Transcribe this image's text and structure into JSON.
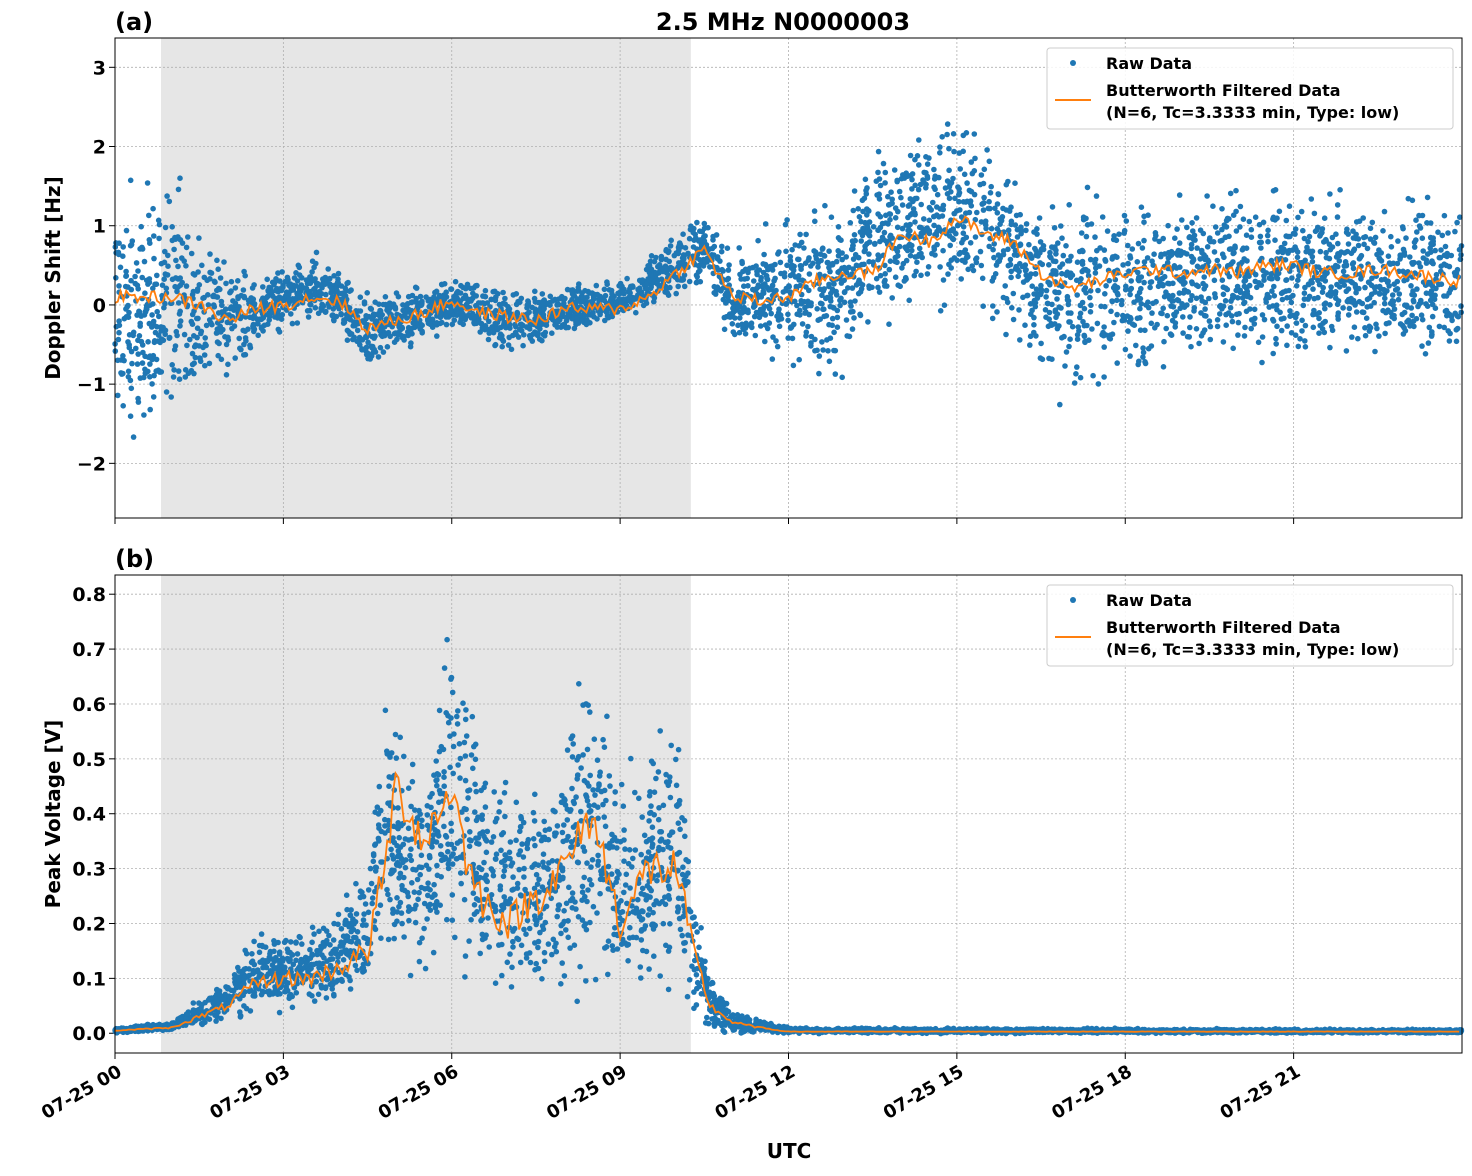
{
  "title": "2.5 MHz N0000003",
  "xlabel": "UTC",
  "colors": {
    "raw": "#1f77b4",
    "filtered": "#ff7f0e",
    "shade": "#e6e6e6"
  },
  "chart_data": [
    {
      "type": "scatter",
      "panel_label": "(a)",
      "ylabel": "Doppler Shift [Hz]",
      "xlim_hours": [
        0,
        24
      ],
      "ylim": [
        -2.69,
        3.37
      ],
      "yticks": [
        -2,
        -1,
        0,
        1,
        2,
        3
      ],
      "yticklabels": [
        "−2",
        "−1",
        "0",
        "1",
        "2",
        "3"
      ],
      "xticklabels": [
        "07-25 00",
        "07-25 03",
        "07-25 06",
        "07-25 09",
        "07-25 12",
        "07-25 15",
        "07-25 18",
        "07-25 21"
      ],
      "xticks_hours": [
        0,
        3,
        6,
        9,
        12,
        15,
        18,
        21
      ],
      "grid": true,
      "legend_placement": "upper-right",
      "legend": [
        "Raw Data",
        "Butterworth Filtered Data",
        "(N=6, Tc=3.3333 min, Type: low)"
      ],
      "shaded_hours": [
        0.82,
        10.26
      ],
      "raw_envelope": [
        [
          0,
          -1.5,
          1.3
        ],
        [
          1,
          -1.6,
          1.6
        ],
        [
          2,
          -0.9,
          0.5
        ],
        [
          2.5,
          -0.5,
          0.3
        ],
        [
          3,
          -0.3,
          0.5
        ],
        [
          3.5,
          -0.2,
          0.6
        ],
        [
          4,
          -0.3,
          0.4
        ],
        [
          4.5,
          -0.9,
          0.2
        ],
        [
          5,
          -0.6,
          0.2
        ],
        [
          6,
          -0.3,
          0.3
        ],
        [
          7,
          -0.6,
          0.2
        ],
        [
          8,
          -0.4,
          0.2
        ],
        [
          9,
          -0.2,
          0.3
        ],
        [
          10,
          0.1,
          0.9
        ],
        [
          10.5,
          0.3,
          1.2
        ],
        [
          11,
          -0.5,
          0.6
        ],
        [
          12,
          -0.7,
          1.0
        ],
        [
          13,
          -0.8,
          1.2
        ],
        [
          13.5,
          -0.1,
          1.9
        ],
        [
          14,
          0.0,
          2.0
        ],
        [
          15,
          0.1,
          2.3
        ],
        [
          16,
          -0.3,
          1.8
        ],
        [
          16.5,
          -1.0,
          1.4
        ],
        [
          17,
          -1.0,
          1.3
        ],
        [
          18,
          -1.0,
          1.4
        ],
        [
          19,
          -0.6,
          1.4
        ],
        [
          20,
          -0.6,
          1.4
        ],
        [
          21,
          -0.6,
          1.4
        ],
        [
          22,
          -0.6,
          1.3
        ],
        [
          23,
          -0.7,
          1.3
        ],
        [
          24,
          -0.7,
          1.3
        ]
      ],
      "filtered": [
        [
          0,
          0.1
        ],
        [
          0.5,
          0.1
        ],
        [
          1,
          0.1
        ],
        [
          1.5,
          0.0
        ],
        [
          2,
          -0.2
        ],
        [
          2.5,
          -0.05
        ],
        [
          3,
          0.0
        ],
        [
          3.5,
          0.1
        ],
        [
          4,
          0.05
        ],
        [
          4.5,
          -0.3
        ],
        [
          5,
          -0.2
        ],
        [
          5.5,
          -0.1
        ],
        [
          6,
          0.05
        ],
        [
          6.5,
          -0.1
        ],
        [
          7,
          -0.15
        ],
        [
          7.5,
          -0.2
        ],
        [
          8,
          -0.05
        ],
        [
          8.5,
          -0.05
        ],
        [
          9,
          -0.05
        ],
        [
          9.5,
          0.1
        ],
        [
          10,
          0.4
        ],
        [
          10.5,
          0.7
        ],
        [
          11,
          0.1
        ],
        [
          11.5,
          0.05
        ],
        [
          12,
          0.1
        ],
        [
          12.5,
          0.3
        ],
        [
          13,
          0.4
        ],
        [
          13.5,
          0.4
        ],
        [
          14,
          0.9
        ],
        [
          14.5,
          0.8
        ],
        [
          15,
          1.1
        ],
        [
          15.5,
          0.9
        ],
        [
          16,
          0.8
        ],
        [
          16.5,
          0.4
        ],
        [
          17,
          0.2
        ],
        [
          17.5,
          0.3
        ],
        [
          18,
          0.4
        ],
        [
          18.5,
          0.45
        ],
        [
          19,
          0.4
        ],
        [
          19.5,
          0.45
        ],
        [
          20,
          0.4
        ],
        [
          20.5,
          0.5
        ],
        [
          21,
          0.5
        ],
        [
          21.5,
          0.4
        ],
        [
          22,
          0.4
        ],
        [
          22.5,
          0.45
        ],
        [
          23,
          0.4
        ],
        [
          23.5,
          0.35
        ],
        [
          24,
          0.3
        ]
      ]
    },
    {
      "type": "scatter",
      "panel_label": "(b)",
      "ylabel": "Peak Voltage [V]",
      "xlim_hours": [
        0,
        24
      ],
      "ylim": [
        -0.036,
        0.835
      ],
      "yticks": [
        0,
        0.1,
        0.2,
        0.3,
        0.4,
        0.5,
        0.6,
        0.7,
        0.8
      ],
      "yticklabels": [
        "0.0",
        "0.1",
        "0.2",
        "0.3",
        "0.4",
        "0.5",
        "0.6",
        "0.7",
        "0.8"
      ],
      "xticklabels": [
        "07-25 00",
        "07-25 03",
        "07-25 06",
        "07-25 09",
        "07-25 12",
        "07-25 15",
        "07-25 18",
        "07-25 21"
      ],
      "xticks_hours": [
        0,
        3,
        6,
        9,
        12,
        15,
        18,
        21
      ],
      "grid": true,
      "legend_placement": "upper-right",
      "legend": [
        "Raw Data",
        "Butterworth Filtered Data",
        "(N=6, Tc=3.3333 min, Type: low)"
      ],
      "shaded_hours": [
        0.82,
        10.26
      ],
      "raw_envelope": [
        [
          0,
          0,
          0.01
        ],
        [
          1,
          0.005,
          0.02
        ],
        [
          1.5,
          0.01,
          0.06
        ],
        [
          2,
          0.02,
          0.1
        ],
        [
          2.5,
          0.04,
          0.18
        ],
        [
          3,
          0.04,
          0.18
        ],
        [
          4,
          0.05,
          0.22
        ],
        [
          4.5,
          0.08,
          0.3
        ],
        [
          4.8,
          0.15,
          0.65
        ],
        [
          5,
          0.12,
          0.55
        ],
        [
          5.5,
          0.1,
          0.5
        ],
        [
          6,
          0.15,
          0.75
        ],
        [
          6.5,
          0.08,
          0.5
        ],
        [
          7,
          0.07,
          0.45
        ],
        [
          7.5,
          0.08,
          0.45
        ],
        [
          8,
          0.1,
          0.5
        ],
        [
          8.5,
          0.12,
          0.7
        ],
        [
          9,
          0.08,
          0.45
        ],
        [
          9.5,
          0.1,
          0.5
        ],
        [
          10,
          0.12,
          0.55
        ],
        [
          10.3,
          0.05,
          0.3
        ],
        [
          10.6,
          0.01,
          0.1
        ],
        [
          11,
          0.0,
          0.04
        ],
        [
          12,
          0.0,
          0.01
        ],
        [
          24,
          0.0,
          0.007
        ]
      ],
      "filtered": [
        [
          0,
          0.005
        ],
        [
          1,
          0.01
        ],
        [
          1.5,
          0.03
        ],
        [
          2,
          0.05
        ],
        [
          2.5,
          0.09
        ],
        [
          3,
          0.1
        ],
        [
          3.5,
          0.1
        ],
        [
          4,
          0.12
        ],
        [
          4.5,
          0.15
        ],
        [
          4.8,
          0.3
        ],
        [
          5,
          0.45
        ],
        [
          5.5,
          0.35
        ],
        [
          6,
          0.45
        ],
        [
          6.3,
          0.3
        ],
        [
          6.5,
          0.25
        ],
        [
          7,
          0.2
        ],
        [
          7.5,
          0.25
        ],
        [
          8,
          0.3
        ],
        [
          8.5,
          0.4
        ],
        [
          9,
          0.2
        ],
        [
          9.5,
          0.3
        ],
        [
          10,
          0.3
        ],
        [
          10.3,
          0.15
        ],
        [
          10.6,
          0.05
        ],
        [
          11,
          0.02
        ],
        [
          11.5,
          0.01
        ],
        [
          12,
          0.003
        ],
        [
          24,
          0.003
        ]
      ]
    }
  ]
}
